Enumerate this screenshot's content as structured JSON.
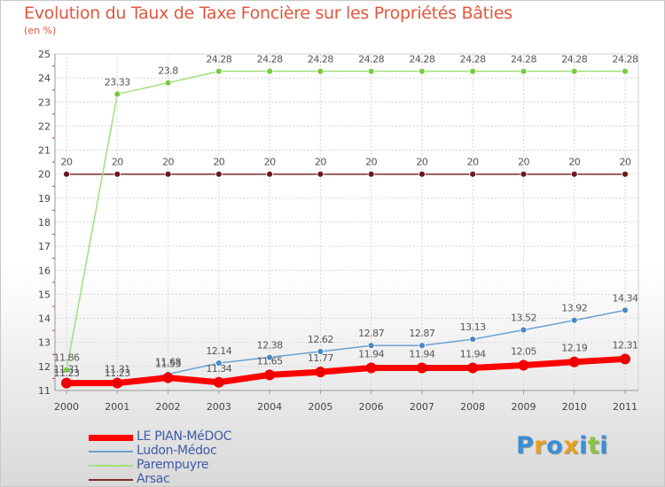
{
  "chart_data": {
    "type": "line",
    "title": "Evolution du Taux de Taxe Foncière sur les Propriétés Bâties",
    "subtitle": "(en %)",
    "xlabel": "",
    "ylabel": "",
    "ylim": [
      11,
      25
    ],
    "grid": true,
    "legend_position": "bottom-left",
    "x": [
      "2000",
      "2001",
      "2002",
      "2003",
      "2004",
      "2005",
      "2006",
      "2007",
      "2008",
      "2009",
      "2010",
      "2011"
    ],
    "y_ticks": [
      "11",
      "12",
      "13",
      "14",
      "15",
      "16",
      "17",
      "18",
      "19",
      "20",
      "21",
      "22",
      "23",
      "24",
      "25"
    ],
    "series": [
      {
        "name": "Arsac",
        "color": "#7b2c30",
        "marker": "#6b1a1e",
        "values": [
          20,
          20,
          20,
          20,
          20,
          20,
          20,
          20,
          20,
          20,
          20,
          20
        ],
        "labels": [
          "20",
          "20",
          "20",
          "20",
          "20",
          "20",
          "20",
          "20",
          "20",
          "20",
          "20",
          "20"
        ]
      },
      {
        "name": "Parempuyre",
        "color": "#9fe07a",
        "marker": "#79cc3c",
        "values": [
          11.86,
          23.33,
          23.8,
          24.28,
          24.28,
          24.28,
          24.28,
          24.28,
          24.28,
          24.28,
          24.28,
          24.28
        ],
        "labels": [
          "11.86",
          "23.33",
          "23.8",
          "24.28",
          "24.28",
          "24.28",
          "24.28",
          "24.28",
          "24.28",
          "24.28",
          "24.28",
          "24.28"
        ]
      },
      {
        "name": "Ludon-Médoc",
        "color": "#6aa0d0",
        "marker": "#4a88c4",
        "values": [
          11.23,
          11.23,
          11.68,
          12.14,
          12.38,
          12.62,
          12.87,
          12.87,
          13.13,
          13.52,
          13.92,
          14.34
        ],
        "labels": [
          "11.23",
          "11.23",
          "11.68",
          "12.14",
          "12.38",
          "12.62",
          "12.87",
          "12.87",
          "13.13",
          "13.52",
          "13.92",
          "14.34"
        ]
      },
      {
        "name": "LE PIAN-MéDOC",
        "color": "#ff0000",
        "marker": "#ee0000",
        "values": [
          11.31,
          11.31,
          11.53,
          11.34,
          11.65,
          11.77,
          11.94,
          11.94,
          11.94,
          12.05,
          12.19,
          12.31
        ],
        "labels": [
          "11.31",
          "11.31",
          "11.53",
          "11.34",
          "11.65",
          "11.77",
          "11.94",
          "11.94",
          "11.94",
          "12.05",
          "12.19",
          "12.31"
        ]
      }
    ]
  },
  "legend": {
    "items": [
      {
        "label": "LE PIAN-MéDOC",
        "color": "#ff0000"
      },
      {
        "label": "Ludon-Médoc",
        "color": "#6aa0d0"
      },
      {
        "label": "Parempuyre",
        "color": "#9fe07a"
      },
      {
        "label": "Arsac",
        "color": "#7b2c30"
      }
    ]
  },
  "logo": {
    "letters": [
      "P",
      "r",
      "o",
      "x",
      "i",
      "t",
      "i"
    ],
    "colors": [
      "#3a8fd6",
      "#e9a020",
      "#3a8fd6",
      "#e9a020",
      "#3a8fd6",
      "#8cc63f",
      "#3a8fd6"
    ]
  }
}
